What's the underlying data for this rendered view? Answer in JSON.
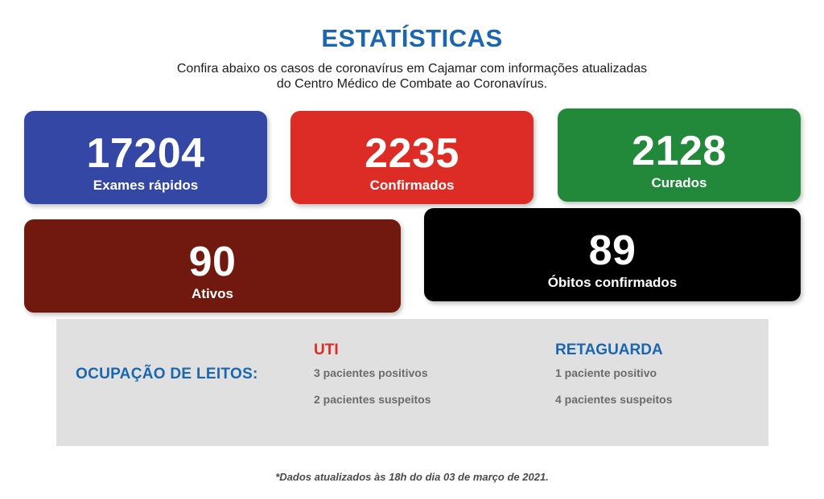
{
  "header": {
    "title": "ESTATÍSTICAS",
    "subtitle_line1": "Confira abaixo os casos de coronavírus em Cajamar com informações atualizadas",
    "subtitle_line2": "do Centro Médico de Combate ao Coronavírus."
  },
  "cards": {
    "exames": {
      "value": "17204",
      "label": "Exames rápidos",
      "color": "#3447a5"
    },
    "confirmados": {
      "value": "2235",
      "label": "Confirmados",
      "color": "#dc2c25"
    },
    "curados": {
      "value": "2128",
      "label": "Curados",
      "color": "#22883a"
    },
    "ativos": {
      "value": "90",
      "label": "Ativos",
      "color": "#72190f"
    },
    "obitos": {
      "value": "89",
      "label": "Óbitos confirmados",
      "color": "#000000"
    }
  },
  "leitos": {
    "title": "OCUPAÇÃO DE LEITOS:",
    "uti": {
      "heading": "UTI",
      "line1": "3 pacientes positivos",
      "line2": "2 pacientes suspeitos"
    },
    "retaguarda": {
      "heading": "RETAGUARDA",
      "line1": "1 paciente positivo",
      "line2": "4 pacientes suspeitos"
    }
  },
  "footnote": "*Dados atualizados às 18h do dia 03 de março de 2021."
}
